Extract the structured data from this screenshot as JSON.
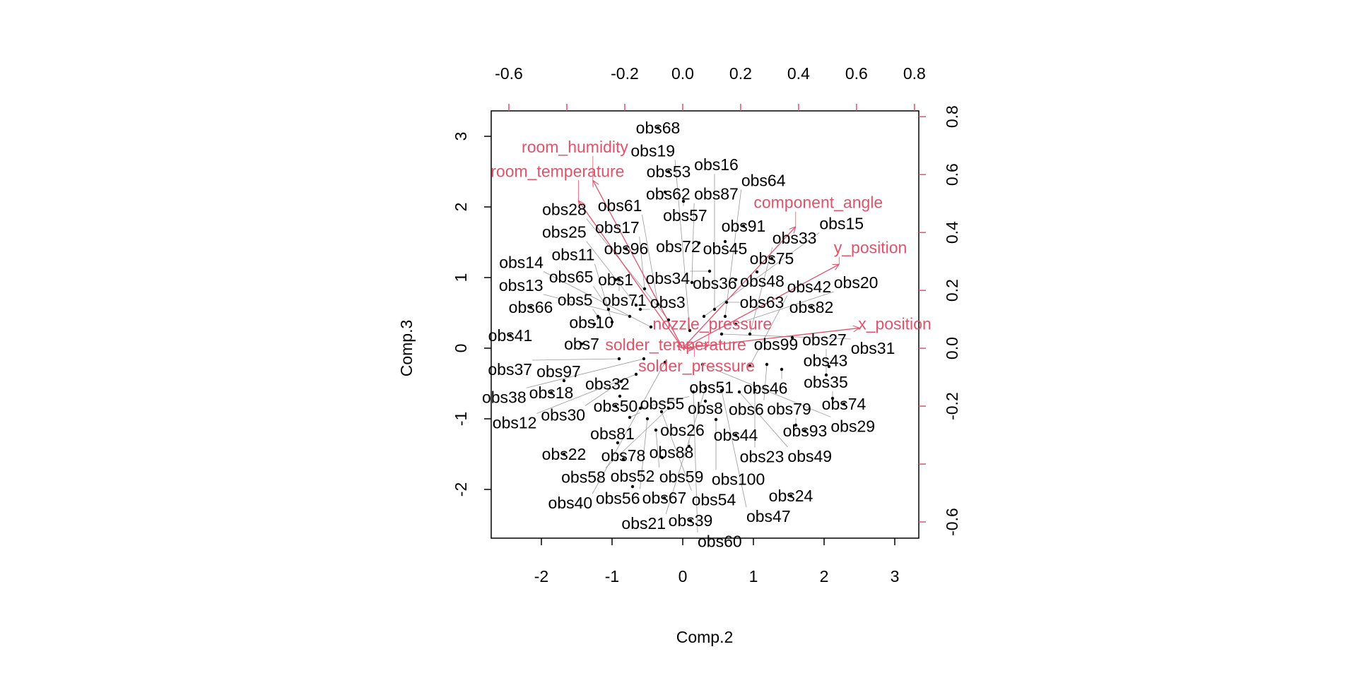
{
  "chart_data": {
    "type": "scatter",
    "subtype": "biplot",
    "title": "",
    "xlabel": "Comp.2",
    "ylabel": "Comp.3",
    "xlim": [
      -2.71,
      3.34
    ],
    "ylim": [
      -2.69,
      3.36
    ],
    "x_ticks": [
      -2,
      -1,
      0,
      1,
      2,
      3
    ],
    "y_ticks": [
      -2,
      -1,
      0,
      1,
      2,
      3
    ],
    "loading_xlim": [
      -0.661,
      0.815
    ],
    "loading_ylim": [
      -0.656,
      0.82
    ],
    "top_ticks": [
      -0.6,
      -0.4,
      -0.2,
      0.0,
      0.2,
      0.4,
      0.6,
      0.8
    ],
    "top_tick_labels": [
      "-0.6",
      "",
      "-0.2",
      "0.0",
      "0.2",
      "0.4",
      "0.6",
      "0.8"
    ],
    "right_ticks": [
      -0.6,
      -0.4,
      -0.2,
      0.0,
      0.2,
      0.4,
      0.6,
      0.8
    ],
    "right_tick_labels": [
      "-0.6",
      "",
      "-0.2",
      "0.0",
      "0.2",
      "0.4",
      "0.6",
      "0.8"
    ],
    "arrow_color": "#DF536B",
    "points_color": "#000000",
    "observations": [
      {
        "label": "obs68",
        "x": -0.35,
        "y": 3.12
      },
      {
        "label": "obs53",
        "x": -0.2,
        "y": 2.5
      },
      {
        "label": "obs62",
        "x": -0.25,
        "y": 2.21
      },
      {
        "label": "obs57",
        "x": 0.01,
        "y": 2.08
      },
      {
        "label": "obs91",
        "x": 0.86,
        "y": 1.73
      },
      {
        "label": "obs72",
        "x": 0.23,
        "y": 1.49
      },
      {
        "label": "obs45",
        "x": 0.6,
        "y": 1.51
      },
      {
        "label": "obs96",
        "x": -0.8,
        "y": 1.41
      },
      {
        "label": "obs75",
        "x": 1.26,
        "y": 1.27
      },
      {
        "label": "obs34",
        "x": 0.38,
        "y": 1.09
      },
      {
        "label": "obs48",
        "x": 1.05,
        "y": 1.08
      },
      {
        "label": "obs36",
        "x": 0.75,
        "y": 0.97
      },
      {
        "label": "obs87",
        "x": 0.13,
        "y": 0.93
      },
      {
        "label": "obs71",
        "x": -0.9,
        "y": 0.97
      },
      {
        "label": "obs17",
        "x": -0.54,
        "y": 0.84
      },
      {
        "label": "obs66",
        "x": -2.15,
        "y": 0.58
      },
      {
        "label": "obs82",
        "x": 1.82,
        "y": 0.58
      },
      {
        "label": "obs63",
        "x": 0.62,
        "y": 0.65
      },
      {
        "label": "obs25",
        "x": -0.66,
        "y": 0.61
      },
      {
        "label": "obs99",
        "x": 1.55,
        "y": 0.15
      },
      {
        "label": "obs41",
        "x": -2.44,
        "y": 0.18
      },
      {
        "label": "obs7",
        "x": -1.43,
        "y": 0.06
      },
      {
        "label": "obs20",
        "x": 0.75,
        "y": 0.34
      },
      {
        "label": "obs29",
        "x": 0.28,
        "y": -0.23
      },
      {
        "label": "obs12",
        "x": -0.66,
        "y": -0.37
      },
      {
        "label": "obs97",
        "x": -1.68,
        "y": -0.46
      },
      {
        "label": "obs30",
        "x": -0.87,
        "y": -0.47
      },
      {
        "label": "obs18",
        "x": -1.86,
        "y": -0.63
      },
      {
        "label": "obs32",
        "x": -0.89,
        "y": -0.68
      },
      {
        "label": "obs6",
        "x": 1.19,
        "y": -0.23
      },
      {
        "label": "obs43",
        "x": 2.07,
        "y": -0.26
      },
      {
        "label": "obs27",
        "x": 2.03,
        "y": -0.38
      },
      {
        "label": "obs21",
        "x": 0.32,
        "y": -0.57
      },
      {
        "label": "obs23",
        "x": 1.02,
        "y": -0.59
      },
      {
        "label": "obs35",
        "x": 2.12,
        "y": -0.71
      },
      {
        "label": "obs74",
        "x": 2.28,
        "y": -0.79
      },
      {
        "label": "obs8",
        "x": 0.32,
        "y": -0.75
      },
      {
        "label": "obs100",
        "x": 0.47,
        "y": -1.01
      },
      {
        "label": "obs59",
        "x": -0.38,
        "y": -1.16
      },
      {
        "label": "obs44",
        "x": 0.75,
        "y": -1.23
      },
      {
        "label": "obs79",
        "x": 1.6,
        "y": -1.09
      },
      {
        "label": "obs93",
        "x": 1.73,
        "y": -1.17
      },
      {
        "label": "obs26",
        "x": 0.09,
        "y": -1.39
      },
      {
        "label": "obs81",
        "x": -0.92,
        "y": -1.34
      },
      {
        "label": "obs22",
        "x": -1.68,
        "y": -1.5
      },
      {
        "label": "obs78",
        "x": -0.84,
        "y": -1.57
      },
      {
        "label": "obs88",
        "x": -0.29,
        "y": -1.55
      },
      {
        "label": "obs52",
        "x": -0.71,
        "y": -1.96
      },
      {
        "label": "obs67",
        "x": -0.26,
        "y": -2.12
      },
      {
        "label": "obs24",
        "x": 1.53,
        "y": -2.09
      },
      {
        "label": "obs39",
        "x": 0.11,
        "y": -2.44
      },
      {
        "label": "obs1",
        "x": -0.95,
        "y": 0.97
      },
      {
        "label": "obs3",
        "x": -0.6,
        "y": 0.55
      },
      {
        "label": "obs5",
        "x": -1.2,
        "y": 0.45
      },
      {
        "label": "obs10",
        "x": -1.25,
        "y": 0.34
      },
      {
        "label": "obs11",
        "x": -1.0,
        "y": 0.37
      },
      {
        "label": "obs13",
        "x": -0.75,
        "y": 0.45
      },
      {
        "label": "obs14",
        "x": -0.45,
        "y": 0.3
      },
      {
        "label": "obs15",
        "x": 0.3,
        "y": 0.45
      },
      {
        "label": "obs16",
        "x": 0.45,
        "y": 0.55
      },
      {
        "label": "obs19",
        "x": 0.1,
        "y": 0.25
      },
      {
        "label": "obs28",
        "x": -0.2,
        "y": 0.4
      },
      {
        "label": "obs31",
        "x": 0.55,
        "y": 0.2
      },
      {
        "label": "obs33",
        "x": 0.95,
        "y": 0.2
      },
      {
        "label": "obs37",
        "x": -0.9,
        "y": -0.15
      },
      {
        "label": "obs38",
        "x": -0.55,
        "y": -0.15
      },
      {
        "label": "obs40",
        "x": -0.25,
        "y": -0.2
      },
      {
        "label": "obs42",
        "x": 0.95,
        "y": -0.25
      },
      {
        "label": "obs46",
        "x": 1.4,
        "y": -0.3
      },
      {
        "label": "obs47",
        "x": 0.55,
        "y": -0.6
      },
      {
        "label": "obs49",
        "x": 0.8,
        "y": -0.62
      },
      {
        "label": "obs50",
        "x": -0.95,
        "y": -0.82
      },
      {
        "label": "obs51",
        "x": -0.6,
        "y": -0.85
      },
      {
        "label": "obs54",
        "x": -0.3,
        "y": -0.9
      },
      {
        "label": "obs55",
        "x": -0.75,
        "y": -0.98
      },
      {
        "label": "obs56",
        "x": -0.5,
        "y": -1.0
      },
      {
        "label": "obs58",
        "x": -0.2,
        "y": -0.85
      },
      {
        "label": "obs60",
        "x": 0.15,
        "y": -0.62
      },
      {
        "label": "obs61",
        "x": -0.35,
        "y": 0.62
      },
      {
        "label": "obs64",
        "x": 0.6,
        "y": 0.45
      },
      {
        "label": "obs65",
        "x": -1.05,
        "y": 0.55
      }
    ],
    "loadings": [
      {
        "label": "room_humidity",
        "x": -0.31,
        "y": 0.58
      },
      {
        "label": "room_temperature",
        "x": -0.36,
        "y": 0.51
      },
      {
        "label": "component_angle",
        "x": 0.39,
        "y": 0.42
      },
      {
        "label": "y_position",
        "x": 0.54,
        "y": 0.29
      },
      {
        "label": "x_position",
        "x": 0.61,
        "y": 0.07
      },
      {
        "label": "solder_temperature",
        "x": -0.02,
        "y": 0.01
      },
      {
        "label": "solder_pressure",
        "x": 0.04,
        "y": 0.0
      },
      {
        "label": "nozzle_pressure",
        "x": 0.09,
        "y": 0.01
      }
    ]
  }
}
